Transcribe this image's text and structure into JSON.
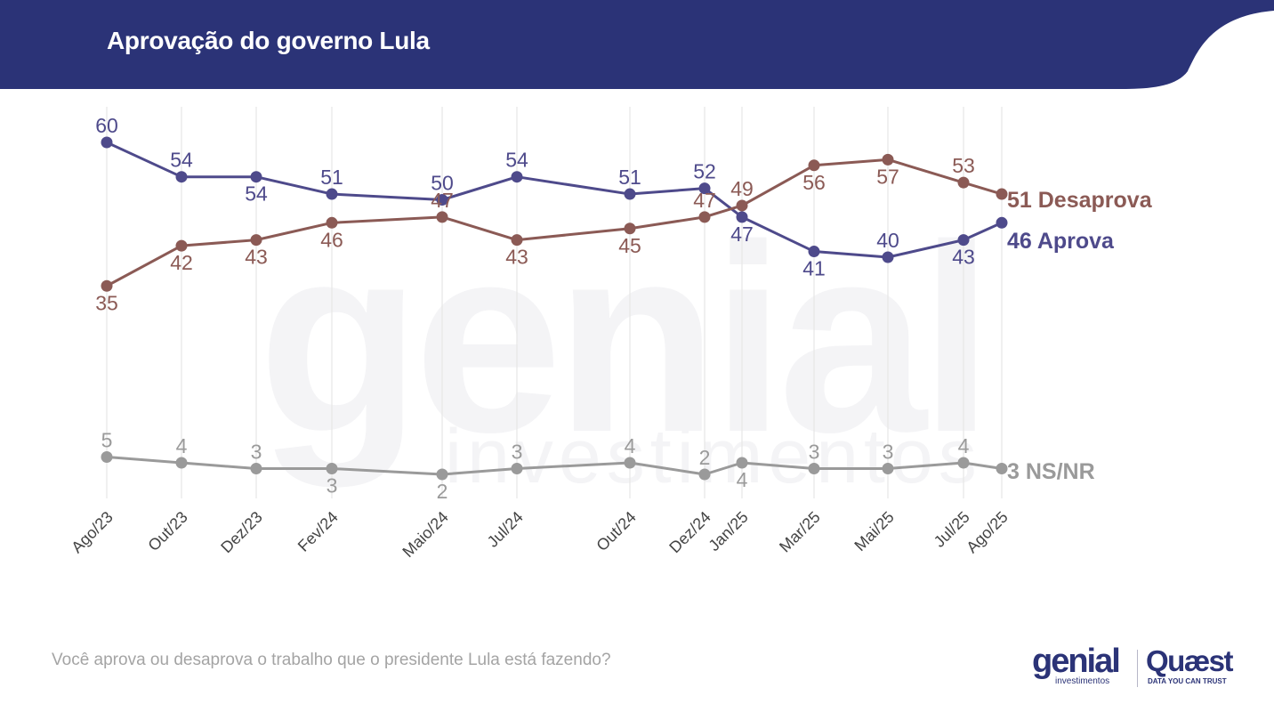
{
  "header": {
    "title": "Aprovação do governo Lula",
    "bg_color": "#2b3377"
  },
  "watermark": {
    "brand": "genial",
    "sub": "investimentos"
  },
  "question": "Você aprova ou desaprova o trabalho que o presidente Lula está fazendo?",
  "logos": {
    "genial": "genial",
    "genial_sub": "investimentos",
    "quaest": "Quæst",
    "quaest_tagline": "DATA YOU CAN TRUST"
  },
  "chart_data": {
    "type": "line",
    "categories": [
      "Ago/23",
      "Out/23",
      "Dez/23",
      "Fev/24",
      "Maio/24",
      "Jul/24",
      "Out/24",
      "Dez/24",
      "Jan/25",
      "Mar/25",
      "Mai/25",
      "Jul/25",
      "Ago/25"
    ],
    "series": [
      {
        "name": "Aprova",
        "end_label": "46 Aprova",
        "color": "#4e4a8b",
        "values": [
          60,
          54,
          54,
          51,
          50,
          54,
          51,
          52,
          47,
          41,
          40,
          43,
          46
        ],
        "labels": [
          "60",
          "54",
          "54",
          "51",
          "50",
          "54",
          "51",
          "52",
          "47",
          "41",
          "40",
          "43",
          ""
        ]
      },
      {
        "name": "Desaprova",
        "end_label": "51 Desaprova",
        "color": "#8b5a55",
        "values": [
          35,
          42,
          43,
          46,
          47,
          43,
          45,
          47,
          49,
          56,
          57,
          53,
          51
        ],
        "labels": [
          "35",
          "42",
          "43",
          "46",
          "47",
          "43",
          "45",
          "47",
          "49",
          "56",
          "57",
          "53",
          ""
        ]
      },
      {
        "name": "NS/NR",
        "end_label": "3 NS/NR",
        "color": "#9a9a9a",
        "values": [
          5,
          4,
          3,
          3,
          2,
          3,
          4,
          2,
          4,
          3,
          3,
          4,
          3
        ],
        "labels": [
          "5",
          "4",
          "3",
          "3",
          "2",
          "3",
          "4",
          "2",
          "4",
          "3",
          "3",
          "4",
          ""
        ]
      }
    ],
    "grid": "vertical",
    "legend": "end-of-line labels"
  }
}
